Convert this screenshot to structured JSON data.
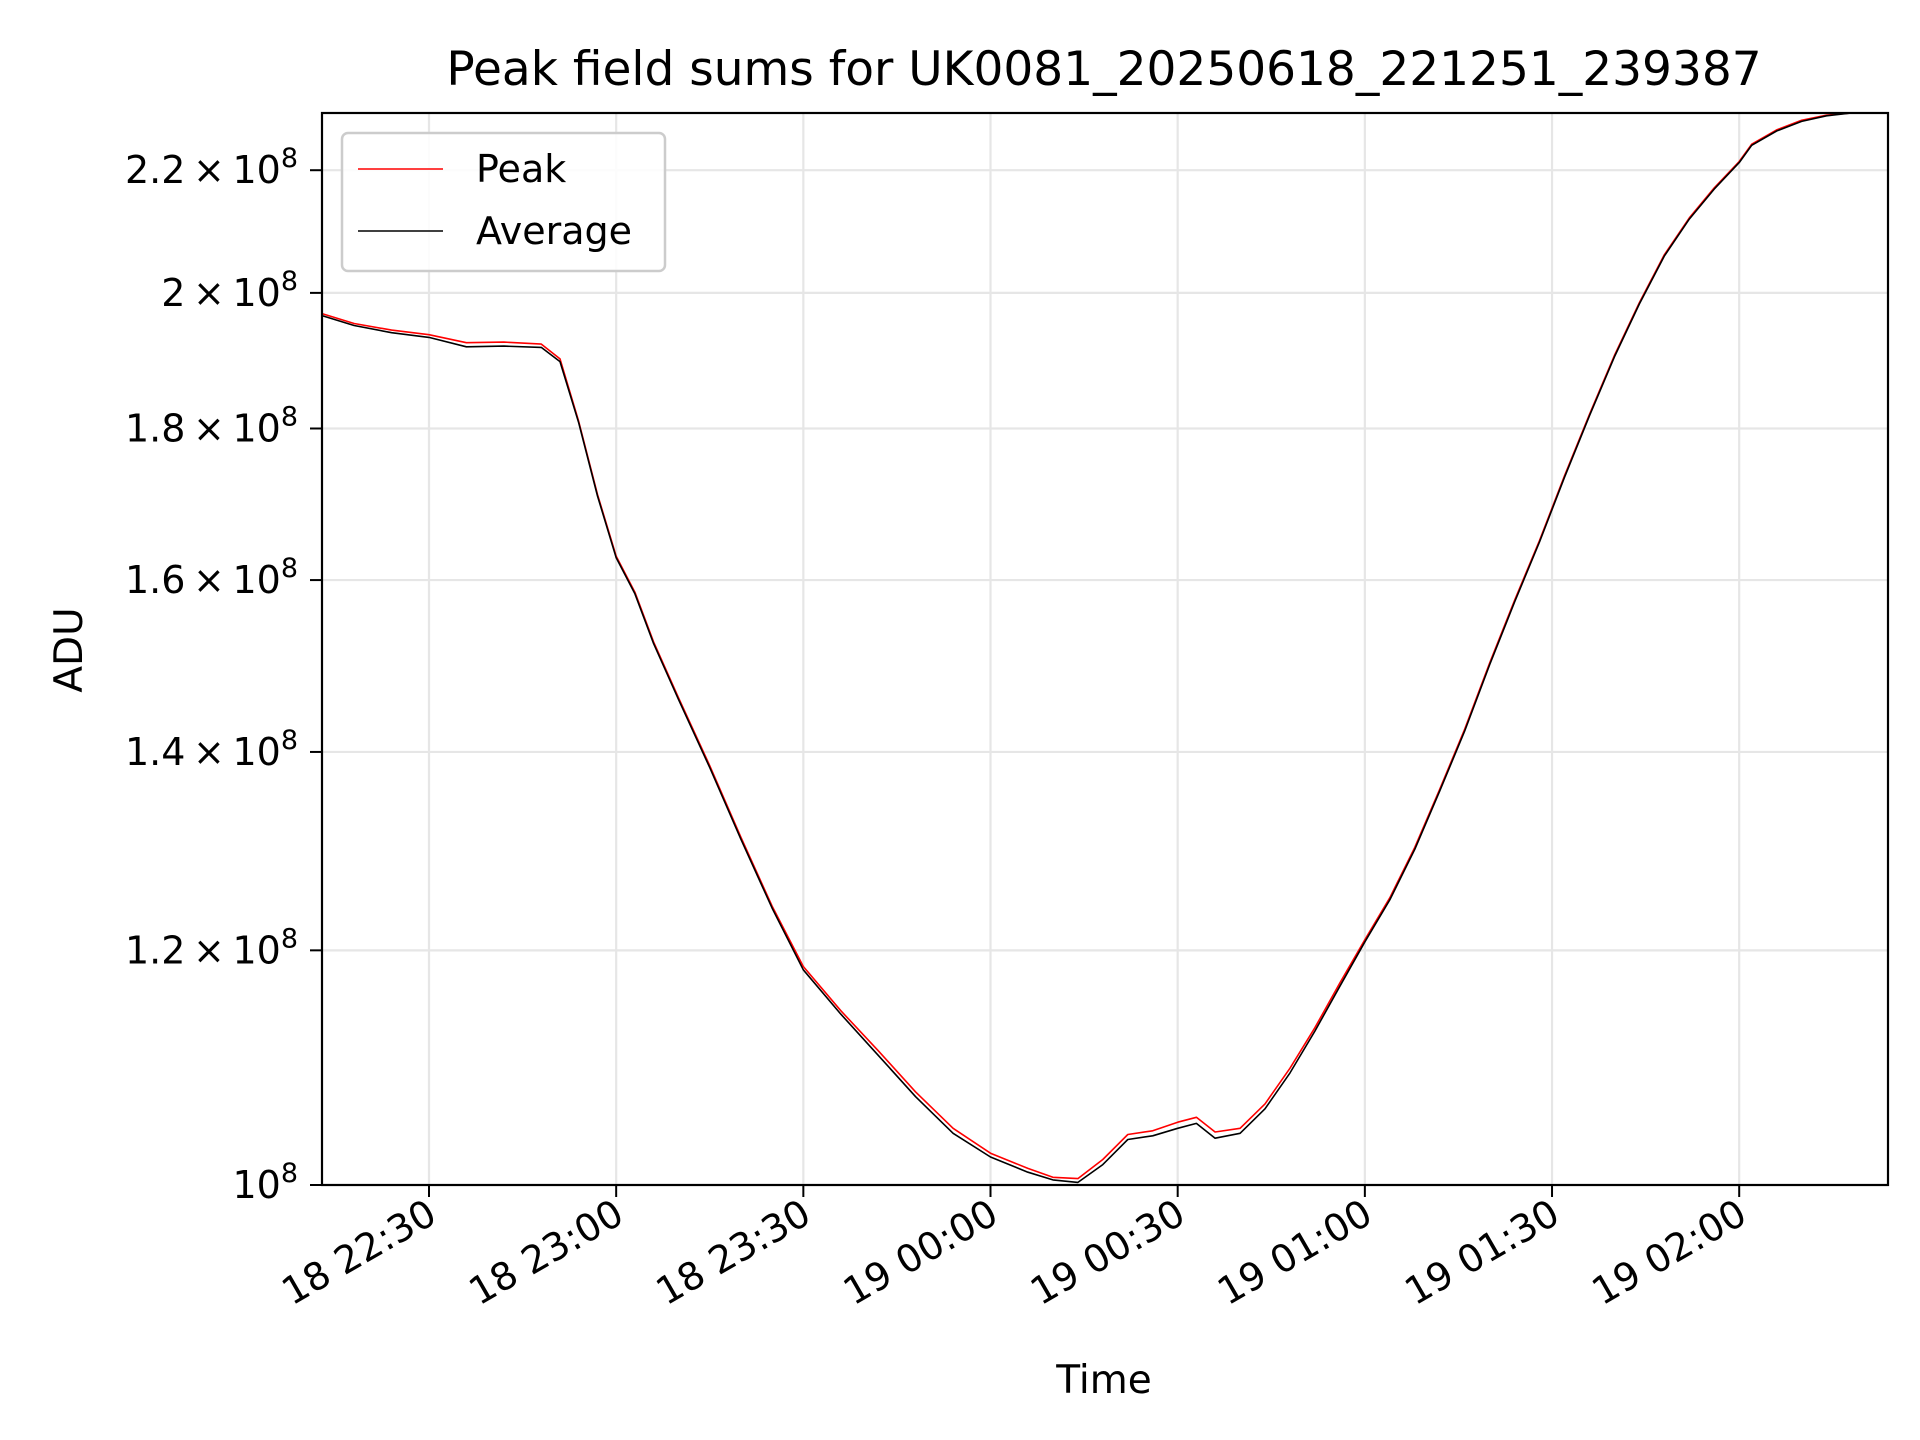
{
  "chart_data": {
    "type": "line",
    "title": "Peak field sums for UK0081_20250618_221251_239387",
    "xlabel": "Time",
    "ylabel": "ADU",
    "x_units": "minutes after 2025-06-18 22:00",
    "xlim": [
      "2025-06-18 22:12:51",
      "2025-06-19 02:23:51"
    ],
    "ylim": [
      100000000,
      230000000
    ],
    "yscale": "log",
    "grid": true,
    "legend_position": "top-left",
    "x_ticks": [
      {
        "x": "2025-06-18 22:30",
        "label": "18 22:30"
      },
      {
        "x": "2025-06-18 23:00",
        "label": "18 23:00"
      },
      {
        "x": "2025-06-18 23:30",
        "label": "18 23:30"
      },
      {
        "x": "2025-06-19 00:00",
        "label": "19 00:00"
      },
      {
        "x": "2025-06-19 00:30",
        "label": "19 00:30"
      },
      {
        "x": "2025-06-19 01:00",
        "label": "19 01:00"
      },
      {
        "x": "2025-06-19 01:30",
        "label": "19 01:30"
      },
      {
        "x": "2025-06-19 02:00",
        "label": "19 02:00"
      }
    ],
    "y_ticks": [
      {
        "y": 100000000,
        "mant": "",
        "exp": "8"
      },
      {
        "y": 120000000,
        "mant": "1.2",
        "exp": "8"
      },
      {
        "y": 140000000,
        "mant": "1.4",
        "exp": "8"
      },
      {
        "y": 160000000,
        "mant": "1.6",
        "exp": "8"
      },
      {
        "y": 180000000,
        "mant": "1.8",
        "exp": "8"
      },
      {
        "y": 200000000,
        "mant": "2",
        "exp": "8"
      },
      {
        "y": 220000000,
        "mant": "2.2",
        "exp": "8"
      }
    ],
    "series": [
      {
        "name": "Peak",
        "color": "#ff0000",
        "x": [
          "2025-06-18 22:12:51",
          "2025-06-18 22:18",
          "2025-06-18 22:24",
          "2025-06-18 22:30",
          "2025-06-18 22:36",
          "2025-06-18 22:42",
          "2025-06-18 22:48",
          "2025-06-18 22:51",
          "2025-06-18 22:54",
          "2025-06-18 22:57",
          "2025-06-18 23:00",
          "2025-06-18 23:03",
          "2025-06-18 23:06",
          "2025-06-18 23:10",
          "2025-06-18 23:15",
          "2025-06-18 23:20",
          "2025-06-18 23:25",
          "2025-06-18 23:30",
          "2025-06-18 23:36",
          "2025-06-18 23:42",
          "2025-06-18 23:48",
          "2025-06-18 23:54",
          "2025-06-19 00:00",
          "2025-06-19 00:06",
          "2025-06-19 00:10",
          "2025-06-19 00:14",
          "2025-06-19 00:18",
          "2025-06-19 00:22",
          "2025-06-19 00:26",
          "2025-06-19 00:30",
          "2025-06-19 00:33",
          "2025-06-19 00:36",
          "2025-06-19 00:40",
          "2025-06-19 00:44",
          "2025-06-19 00:48",
          "2025-06-19 00:52",
          "2025-06-19 00:56",
          "2025-06-19 01:00",
          "2025-06-19 01:04",
          "2025-06-19 01:08",
          "2025-06-19 01:12",
          "2025-06-19 01:16",
          "2025-06-19 01:20",
          "2025-06-19 01:24",
          "2025-06-19 01:28",
          "2025-06-19 01:32",
          "2025-06-19 01:36",
          "2025-06-19 01:40",
          "2025-06-19 01:44",
          "2025-06-19 01:48",
          "2025-06-19 01:52",
          "2025-06-19 01:56",
          "2025-06-19 02:00",
          "2025-06-19 02:02",
          "2025-06-19 02:06",
          "2025-06-19 02:10",
          "2025-06-19 02:14",
          "2025-06-19 02:18",
          "2025-06-19 02:23:51"
        ],
        "y": [
          196800000,
          195300000,
          194300000,
          193600000,
          192400000,
          192500000,
          192200000,
          190000000,
          181000000,
          171000000,
          163000000,
          158500000,
          152500000,
          146000000,
          138500000,
          131000000,
          124200000,
          118500000,
          114500000,
          111000000,
          107500000,
          104500000,
          102500000,
          101300000,
          100600000,
          100500000,
          102000000,
          104000000,
          104300000,
          105000000,
          105400000,
          104200000,
          104500000,
          106500000,
          109500000,
          113000000,
          117000000,
          121000000,
          125000000,
          130000000,
          136000000,
          142500000,
          150000000,
          157500000,
          165000000,
          173500000,
          182000000,
          190500000,
          198500000,
          206000000,
          212000000,
          217000000,
          221500000,
          224500000,
          227000000,
          228700000,
          229600000,
          230000000,
          230000000
        ]
      },
      {
        "name": "Average",
        "color": "#000000",
        "x": [
          "2025-06-18 22:12:51",
          "2025-06-18 22:18",
          "2025-06-18 22:24",
          "2025-06-18 22:30",
          "2025-06-18 22:36",
          "2025-06-18 22:42",
          "2025-06-18 22:48",
          "2025-06-18 22:51",
          "2025-06-18 22:54",
          "2025-06-18 22:57",
          "2025-06-18 23:00",
          "2025-06-18 23:03",
          "2025-06-18 23:06",
          "2025-06-18 23:10",
          "2025-06-18 23:15",
          "2025-06-18 23:20",
          "2025-06-18 23:25",
          "2025-06-18 23:30",
          "2025-06-18 23:36",
          "2025-06-18 23:42",
          "2025-06-18 23:48",
          "2025-06-18 23:54",
          "2025-06-19 00:00",
          "2025-06-19 00:06",
          "2025-06-19 00:10",
          "2025-06-19 00:14",
          "2025-06-19 00:18",
          "2025-06-19 00:22",
          "2025-06-19 00:26",
          "2025-06-19 00:30",
          "2025-06-19 00:33",
          "2025-06-19 00:36",
          "2025-06-19 00:40",
          "2025-06-19 00:44",
          "2025-06-19 00:48",
          "2025-06-19 00:52",
          "2025-06-19 00:56",
          "2025-06-19 01:00",
          "2025-06-19 01:04",
          "2025-06-19 01:08",
          "2025-06-19 01:12",
          "2025-06-19 01:16",
          "2025-06-19 01:20",
          "2025-06-19 01:24",
          "2025-06-19 01:28",
          "2025-06-19 01:32",
          "2025-06-19 01:36",
          "2025-06-19 01:40",
          "2025-06-19 01:44",
          "2025-06-19 01:48",
          "2025-06-19 01:52",
          "2025-06-19 01:56",
          "2025-06-19 02:00",
          "2025-06-19 02:02",
          "2025-06-19 02:06",
          "2025-06-19 02:10",
          "2025-06-19 02:14",
          "2025-06-19 02:18",
          "2025-06-19 02:23:51"
        ],
        "y": [
          196500000,
          195000000,
          193900000,
          193200000,
          191800000,
          191900000,
          191700000,
          189600000,
          180800000,
          170800000,
          162800000,
          158300000,
          152300000,
          145800000,
          138300000,
          130800000,
          124000000,
          118200000,
          114200000,
          110600000,
          107100000,
          104100000,
          102200000,
          101000000,
          100400000,
          100200000,
          101600000,
          103600000,
          103900000,
          104500000,
          104900000,
          103700000,
          104100000,
          106100000,
          109100000,
          112700000,
          116700000,
          120800000,
          124800000,
          129800000,
          135800000,
          142300000,
          149800000,
          157300000,
          164800000,
          173300000,
          181800000,
          190300000,
          198300000,
          205800000,
          211800000,
          216800000,
          221300000,
          224300000,
          226800000,
          228500000,
          229500000,
          230000000,
          230000000
        ]
      }
    ]
  }
}
